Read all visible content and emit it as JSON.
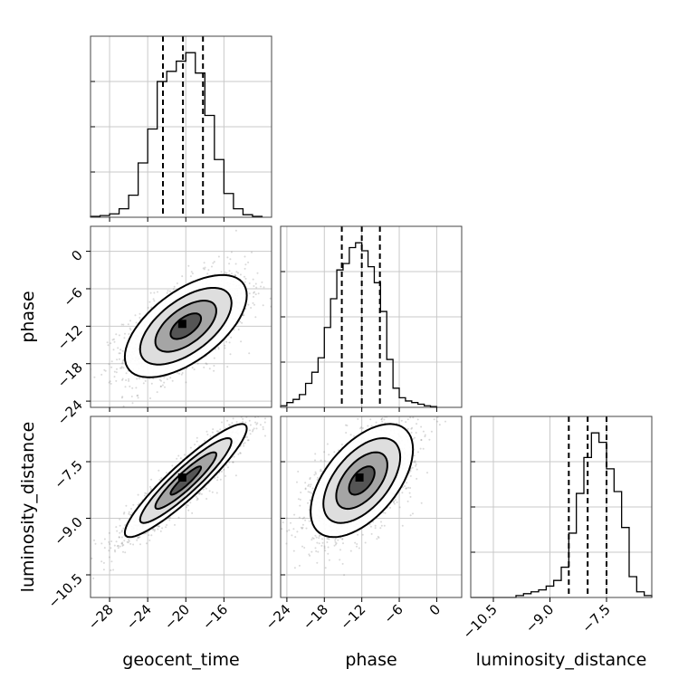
{
  "chart_data": {
    "type": "corner",
    "parameters": [
      {
        "label": "geocent_time",
        "range": [
          -30,
          -11
        ],
        "ticks": [
          -28,
          -24,
          -20,
          -16
        ],
        "tick_labels": [
          "−28",
          "−24",
          "−20",
          "−16"
        ],
        "median": -20.3,
        "q16": -22.4,
        "q84": -18.2
      },
      {
        "label": "phase",
        "range": [
          -25,
          4
        ],
        "ticks": [
          -24,
          -18,
          -12,
          -6,
          0
        ],
        "tick_labels": [
          "−24",
          "−18",
          "−12",
          "−6",
          "0"
        ],
        "median": -12,
        "q16": -15.2,
        "q84": -9.1
      },
      {
        "label": "luminosity_distance",
        "range": [
          -11.1,
          -6.3
        ],
        "ticks": [
          -10.5,
          -9.0,
          -7.5
        ],
        "tick_labels": [
          "−10.5",
          "−9.0",
          "−7.5"
        ],
        "median": -8.0,
        "q16": -8.5,
        "q84": -7.5
      }
    ],
    "histograms": [
      {
        "param": "geocent_time",
        "bins": [
          -30,
          -29,
          -28,
          -27,
          -26,
          -25,
          -24,
          -23,
          -22,
          -21,
          -20,
          -19,
          -18,
          -17,
          -16,
          -15,
          -14,
          -13,
          -12
        ],
        "counts": [
          0.5,
          1,
          2,
          5,
          13,
          32,
          52,
          80,
          86,
          92,
          97,
          85,
          60,
          34,
          14,
          5,
          1.5,
          0.5
        ]
      },
      {
        "param": "phase",
        "bins": [
          -25,
          -24,
          -23,
          -22,
          -21,
          -20,
          -19,
          -18,
          -17,
          -16,
          -15,
          -14,
          -13,
          -12,
          -11,
          -10,
          -9,
          -8,
          -7,
          -6,
          -5,
          -4,
          -3,
          -2,
          -1,
          0
        ],
        "counts": [
          1,
          3,
          5,
          8,
          15,
          22,
          31,
          50,
          68,
          86,
          90,
          100,
          103,
          98,
          88,
          78,
          60,
          30,
          12,
          6,
          4,
          3,
          2,
          1,
          0.5
        ]
      },
      {
        "param": "luminosity_distance",
        "bins": [
          -11.1,
          -10.9,
          -10.7,
          -10.5,
          -10.3,
          -10.1,
          -9.9,
          -9.7,
          -9.5,
          -9.3,
          -9.1,
          -8.9,
          -8.7,
          -8.5,
          -8.3,
          -8.1,
          -7.9,
          -7.7,
          -7.5,
          -7.3,
          -7.1,
          -6.9,
          -6.7,
          -6.5,
          -6.3
        ],
        "counts": [
          0,
          0,
          0,
          0,
          0,
          0,
          1,
          2,
          3,
          4,
          6,
          9,
          16,
          34,
          55,
          74,
          87,
          82,
          68,
          56,
          37,
          11,
          3,
          1
        ]
      }
    ],
    "pairs": [
      {
        "x": "geocent_time",
        "y": "phase",
        "mean": [
          -20,
          -12
        ],
        "sd": [
          3.2,
          4.1
        ],
        "rho": 0.6
      },
      {
        "x": "geocent_time",
        "y": "luminosity_distance",
        "mean": [
          -20,
          -8
        ],
        "sd": [
          3.2,
          0.75
        ],
        "rho": 0.92
      },
      {
        "x": "phase",
        "y": "luminosity_distance",
        "mean": [
          -12,
          -8
        ],
        "sd": [
          4.1,
          0.75
        ],
        "rho": 0.55
      }
    ],
    "contour_levels_sigma": [
      0.5,
      1,
      1.5,
      2
    ],
    "grid": true
  }
}
